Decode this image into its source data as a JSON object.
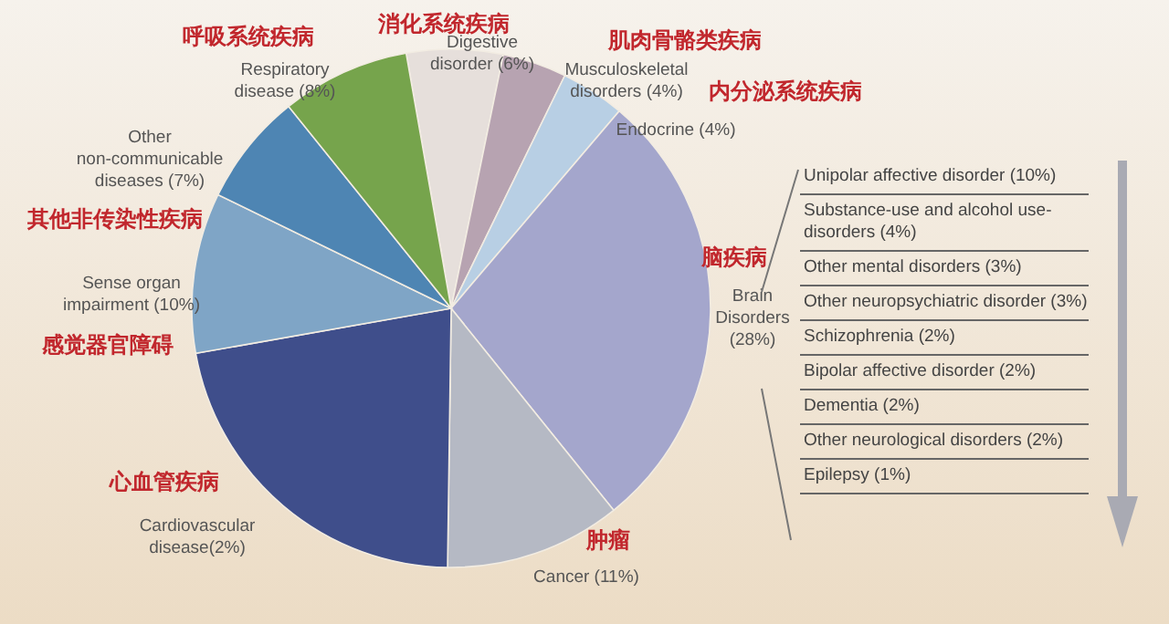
{
  "chart_data": [
    {
      "type": "pie",
      "categories": [
        "Digestive disorder (6%)",
        "Musculoskeletal disorders (4%)",
        "Endocrine (4%)",
        "Brain Disorders (28%)",
        "Cancer (11%)",
        "Cardiovascular disease(2%)",
        "Sense organ impairment (10%)",
        "Other non-communicable diseases (7%)",
        "Respiratory disease (8%)"
      ],
      "values": [
        6,
        4,
        4,
        28,
        11,
        22,
        10,
        7,
        8
      ],
      "colors": [
        "#e6dfdb",
        "#b7a3b1",
        "#b8cfe4",
        "#a4a6cc",
        "#b5b9c4",
        "#3f4e8b",
        "#7fa5c6",
        "#4e85b3",
        "#76a44c"
      ],
      "annotations": [
        "消化系统疾病",
        "肌肉骨骼类疾病",
        "内分泌系统疾病",
        "脑疾病",
        "肿瘤",
        "心血管疾病",
        "感觉器官障碍",
        "其他非传染性疾病",
        "呼吸系统疾病"
      ]
    },
    {
      "type": "other",
      "annotations": [
        "Unipolar affective disorder (10%)",
        "Substance-use and alcohol use-disorders (4%)",
        "Other mental disorders (3%)",
        "Other neuropsychiatric disorder (3%)",
        "Schizophrenia (2%)",
        "Bipolar affective disorder (2%)",
        "Dementia (2%)",
        "Other neurological disorders (2%)",
        "Epilepsy (1%)"
      ]
    }
  ]
}
